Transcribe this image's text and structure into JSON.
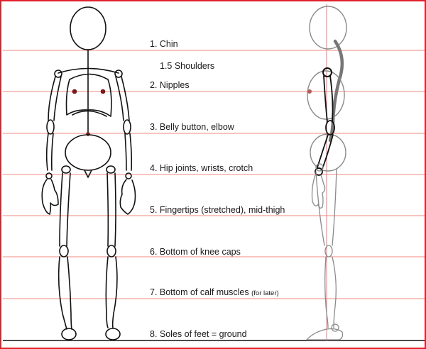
{
  "diagram": {
    "colors": {
      "border": "#e0202c",
      "guide_line": "#ef8a80",
      "center_line": "#f07a7a",
      "ink": "#111111",
      "side_ink": "#8a8a8a",
      "spine": "#777777"
    },
    "guides": [
      {
        "label": "1. Chin"
      },
      {
        "label": "1.5 Shoulders"
      },
      {
        "label": "2. Nipples"
      },
      {
        "label": "3. Belly button, elbow"
      },
      {
        "label": "4. Hip joints, wrists, crotch"
      },
      {
        "label": "5. Fingertips (stretched), mid-thigh"
      },
      {
        "label": "6. Bottom of knee caps"
      },
      {
        "label": "7. Bottom of calf muscles",
        "note": "(for later)"
      },
      {
        "label": "8. Soles of feet = ground"
      }
    ]
  }
}
